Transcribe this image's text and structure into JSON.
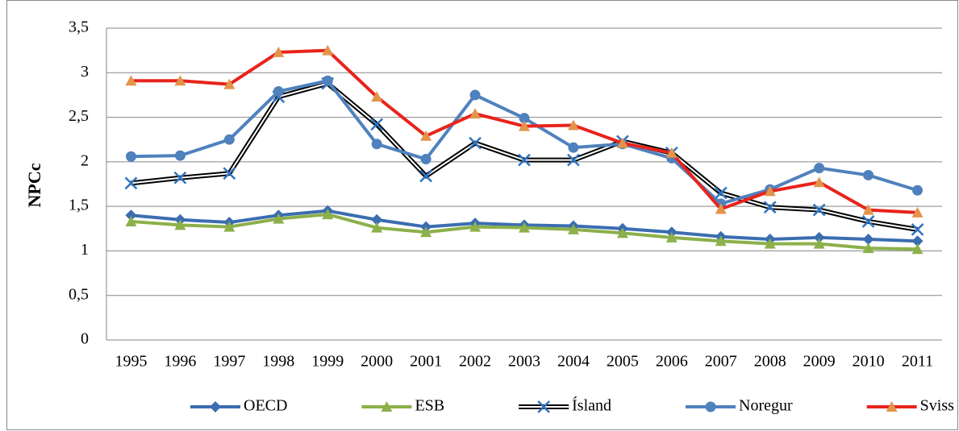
{
  "chart_data": {
    "type": "line",
    "y_label": "NPCc",
    "categories": [
      "1995",
      "1996",
      "1997",
      "1998",
      "1999",
      "2000",
      "2001",
      "2002",
      "2003",
      "2004",
      "2005",
      "2006",
      "2007",
      "2008",
      "2009",
      "2010",
      "2011"
    ],
    "ylim": [
      0,
      3.5
    ],
    "yticks": [
      0,
      {
        "value": 0.5,
        "label": "0,5"
      },
      1,
      {
        "value": 1.5,
        "label": "1,5"
      },
      2,
      {
        "value": 2.5,
        "label": "2,5"
      },
      3,
      {
        "value": 3.5,
        "label": "3,5"
      }
    ],
    "grid": true,
    "legend": "bottom",
    "series": [
      {
        "name": "OECD",
        "color": "#3b6db0",
        "marker": "diamond",
        "values": [
          1.4,
          1.35,
          1.32,
          1.4,
          1.45,
          1.35,
          1.27,
          1.31,
          1.29,
          1.28,
          1.25,
          1.21,
          1.16,
          1.13,
          1.15,
          1.13,
          1.11
        ]
      },
      {
        "name": "ESB",
        "color": "#8cb04a",
        "marker": "triangle",
        "values": [
          1.33,
          1.29,
          1.27,
          1.36,
          1.41,
          1.26,
          1.21,
          1.27,
          1.26,
          1.24,
          1.2,
          1.15,
          1.11,
          1.08,
          1.08,
          1.03,
          1.02
        ]
      },
      {
        "name": "Ísland",
        "color": "#000000",
        "marker_color": "#2f74c0",
        "marker": "x",
        "double_line": true,
        "values": [
          1.76,
          1.82,
          1.87,
          2.73,
          2.88,
          2.42,
          1.84,
          2.21,
          2.02,
          2.02,
          2.23,
          2.1,
          1.65,
          1.49,
          1.46,
          1.33,
          1.24
        ]
      },
      {
        "name": "Noregur",
        "color": "#4f81bd",
        "marker": "circle",
        "values": [
          2.06,
          2.07,
          2.25,
          2.79,
          2.91,
          2.2,
          2.03,
          2.75,
          2.49,
          2.16,
          2.2,
          2.04,
          1.53,
          1.69,
          1.93,
          1.85,
          1.68
        ]
      },
      {
        "name": "Sviss",
        "color": "#e8231c",
        "marker_color": "#e3944a",
        "marker": "triangle",
        "values": [
          2.91,
          2.91,
          2.87,
          3.23,
          3.25,
          2.73,
          2.29,
          2.54,
          2.4,
          2.41,
          2.21,
          2.1,
          1.47,
          1.67,
          1.77,
          1.46,
          1.43
        ]
      }
    ]
  }
}
